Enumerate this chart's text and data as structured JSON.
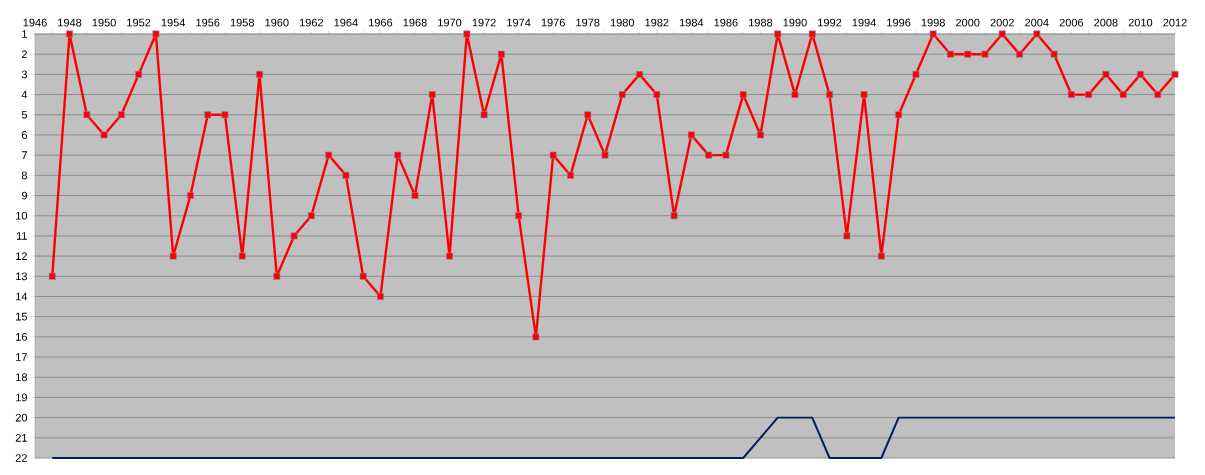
{
  "chart_data": {
    "type": "line",
    "x": [
      1947,
      1948,
      1949,
      1950,
      1951,
      1952,
      1953,
      1954,
      1955,
      1956,
      1957,
      1958,
      1959,
      1960,
      1961,
      1962,
      1963,
      1964,
      1965,
      1966,
      1967,
      1968,
      1969,
      1970,
      1971,
      1972,
      1973,
      1974,
      1975,
      1976,
      1977,
      1978,
      1979,
      1980,
      1981,
      1982,
      1983,
      1984,
      1985,
      1986,
      1987,
      1988,
      1989,
      1990,
      1991,
      1992,
      1993,
      1994,
      1995,
      1996,
      1997,
      1998,
      1999,
      2000,
      2001,
      2002,
      2003,
      2004,
      2005,
      2006,
      2007,
      2008,
      2009,
      2010,
      2011,
      2012
    ],
    "series": [
      {
        "color": "#ff0000",
        "marker": "square",
        "values": [
          13,
          1,
          5,
          6,
          5,
          3,
          1,
          12,
          9,
          5,
          5,
          12,
          3,
          13,
          11,
          10,
          7,
          8,
          13,
          14,
          7,
          9,
          4,
          12,
          1,
          5,
          2,
          10,
          16,
          7,
          8,
          5,
          7,
          4,
          3,
          4,
          10,
          6,
          7,
          7,
          4,
          6,
          1,
          4,
          1,
          4,
          11,
          4,
          12,
          5,
          3,
          1,
          2,
          2,
          2,
          1,
          2,
          1,
          2,
          4,
          4,
          3,
          4,
          3,
          4,
          3
        ]
      },
      {
        "color": "#002060",
        "marker": "none",
        "values": [
          22,
          22,
          22,
          22,
          22,
          22,
          22,
          22,
          22,
          22,
          22,
          22,
          22,
          22,
          22,
          22,
          22,
          22,
          22,
          22,
          22,
          22,
          22,
          22,
          22,
          22,
          22,
          22,
          22,
          22,
          22,
          22,
          22,
          22,
          22,
          22,
          22,
          22,
          22,
          22,
          22,
          21,
          20,
          20,
          20,
          22,
          22,
          22,
          22,
          20,
          20,
          20,
          20,
          20,
          20,
          20,
          20,
          20,
          20,
          20,
          20,
          20,
          20,
          20,
          20,
          20
        ]
      }
    ],
    "xlim": [
      1946,
      2012
    ],
    "xticks": [
      1946,
      {
        "value": 1947,
        "label": null
      },
      1948,
      {
        "value": 1949,
        "label": null
      },
      1950,
      {
        "value": 1951,
        "label": null
      },
      1952,
      {
        "value": 1953,
        "label": null
      },
      1954,
      {
        "value": 1955,
        "label": null
      },
      1956,
      {
        "value": 1957,
        "label": null
      },
      1958,
      {
        "value": 1959,
        "label": null
      },
      1960,
      {
        "value": 1961,
        "label": null
      },
      1962,
      {
        "value": 1963,
        "label": null
      },
      1964,
      {
        "value": 1965,
        "label": null
      },
      1966,
      {
        "value": 1967,
        "label": null
      },
      1968,
      {
        "value": 1969,
        "label": null
      },
      1970,
      {
        "value": 1971,
        "label": null
      },
      1972,
      {
        "value": 1973,
        "label": null
      },
      1974,
      {
        "value": 1975,
        "label": null
      },
      1976,
      {
        "value": 1977,
        "label": null
      },
      1978,
      {
        "value": 1979,
        "label": null
      },
      1980,
      {
        "value": 1981,
        "label": null
      },
      1982,
      {
        "value": 1983,
        "label": null
      },
      1984,
      {
        "value": 1985,
        "label": null
      },
      1986,
      {
        "value": 1987,
        "label": null
      },
      1988,
      {
        "value": 1989,
        "label": null
      },
      1990,
      {
        "value": 1991,
        "label": null
      },
      1992,
      {
        "value": 1993,
        "label": null
      },
      1994,
      {
        "value": 1995,
        "label": null
      },
      1996,
      {
        "value": 1997,
        "label": null
      },
      1998,
      {
        "value": 1999,
        "label": null
      },
      2000,
      {
        "value": 2001,
        "label": null
      },
      2002,
      {
        "value": 2003,
        "label": null
      },
      2004,
      {
        "value": 2005,
        "label": null
      },
      2006,
      {
        "value": 2007,
        "label": null
      },
      2008,
      {
        "value": 2009,
        "label": null
      },
      2010,
      {
        "value": 2011,
        "label": null
      },
      2012
    ],
    "ylim": [
      22,
      1
    ],
    "yticks": [
      1,
      2,
      3,
      4,
      5,
      6,
      7,
      8,
      9,
      10,
      11,
      12,
      13,
      14,
      15,
      16,
      17,
      18,
      19,
      20,
      21,
      22
    ],
    "grid": "y"
  }
}
